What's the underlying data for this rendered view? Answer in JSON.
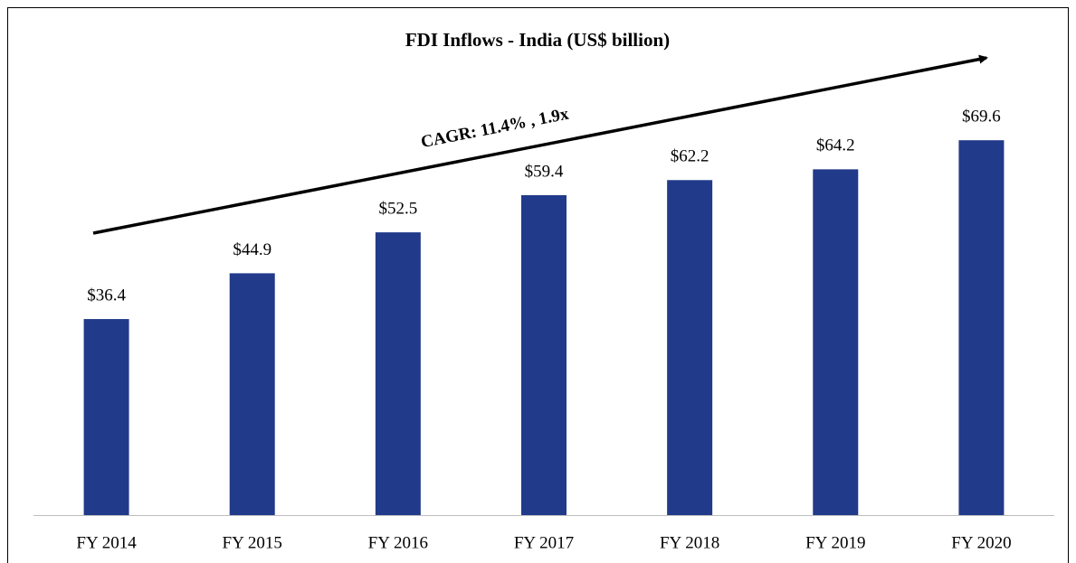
{
  "chart_data": {
    "type": "bar",
    "title": "FDI Inflows - India (US$ billion)",
    "categories": [
      "FY 2014",
      "FY 2015",
      "FY 2016",
      "FY 2017",
      "FY 2018",
      "FY 2019",
      "FY 2020"
    ],
    "values": [
      36.4,
      44.9,
      52.5,
      59.4,
      62.2,
      64.2,
      69.6
    ],
    "value_labels": [
      "$36.4",
      "$44.9",
      "$52.5",
      "$59.4",
      "$62.2",
      "$64.2",
      "$69.6"
    ],
    "color": "#213a8a",
    "annotation": "CAGR: 11.4% , 1.9x"
  }
}
